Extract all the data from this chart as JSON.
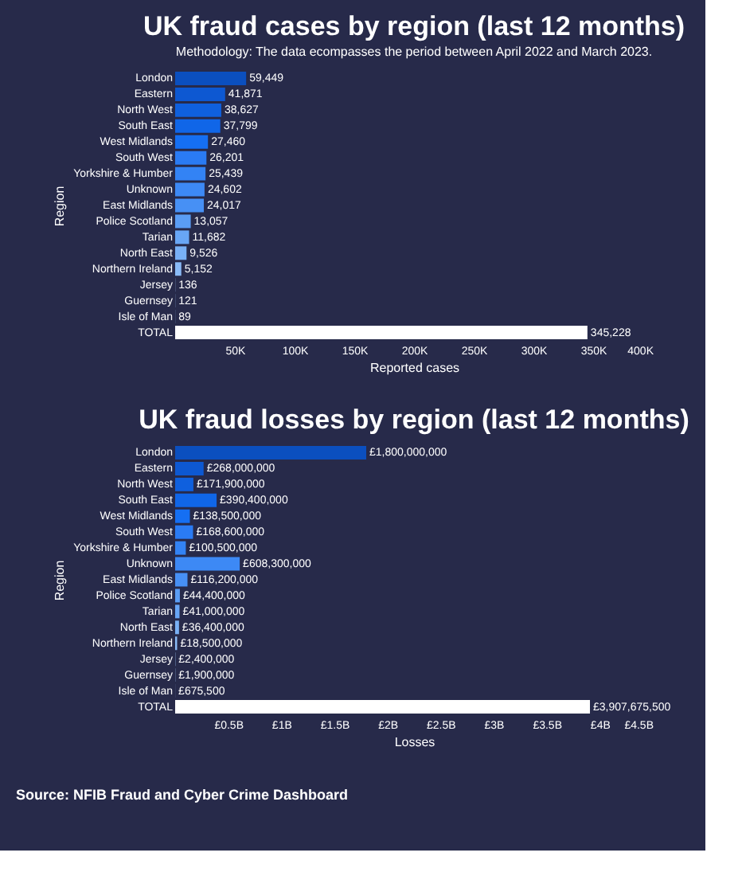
{
  "chart_data": [
    {
      "type": "bar",
      "orientation": "horizontal",
      "title": "UK fraud cases by region (last 12 months)",
      "subtitle": "Methodology: The data ecompasses the period between April 2022 and March 2023.",
      "xlabel": "Reported cases",
      "ylabel": "Region",
      "categories": [
        "London",
        "Eastern",
        "North West",
        "South East",
        "West Midlands",
        "South West",
        "Yorkshire & Humber",
        "Unknown",
        "East Midlands",
        "Police Scotland",
        "Tarian",
        "North East",
        "Northern Ireland",
        "Jersey",
        "Guernsey",
        "Isle of Man",
        "TOTAL"
      ],
      "values": [
        59449,
        41871,
        38627,
        37799,
        27460,
        26201,
        25439,
        24602,
        24017,
        13057,
        11682,
        9526,
        5152,
        136,
        121,
        89,
        345228
      ],
      "value_labels": [
        "59,449",
        "41,871",
        "38,627",
        "37,799",
        "27,460",
        "26,201",
        "25,439",
        "24,602",
        "24,017",
        "13,057",
        "11,682",
        "9,526",
        "5,152",
        "136",
        "121",
        "89",
        "345,228"
      ],
      "colors": [
        "#0b4fbf",
        "#0d58d2",
        "#0f60de",
        "#1066e8",
        "#156ff3",
        "#2a7bf4",
        "#3383f5",
        "#3d89f5",
        "#4790f5",
        "#5a9df5",
        "#68a6f6",
        "#78b0f6",
        "#8abbf7",
        "#a0c8f8",
        "#a0c8f8",
        "#a0c8f8",
        "#ffffff"
      ],
      "xlim": [
        0,
        400000
      ],
      "xticks": [
        {
          "value": 50000,
          "label": "50K"
        },
        {
          "value": 100000,
          "label": "100K"
        },
        {
          "value": 150000,
          "label": "150K"
        },
        {
          "value": 200000,
          "label": "200K"
        },
        {
          "value": 250000,
          "label": "250K"
        },
        {
          "value": 300000,
          "label": "300K"
        },
        {
          "value": 350000,
          "label": "350K"
        },
        {
          "value": 400000,
          "label": "400K"
        }
      ],
      "grid": false
    },
    {
      "type": "bar",
      "orientation": "horizontal",
      "title": "UK fraud losses by region (last 12 months)",
      "xlabel": "Losses",
      "ylabel": "Region",
      "categories": [
        "London",
        "Eastern",
        "North West",
        "South East",
        "West Midlands",
        "South West",
        "Yorkshire & Humber",
        "Unknown",
        "East Midlands",
        "Police Scotland",
        "Tarian",
        "North East",
        "Northern Ireland",
        "Jersey",
        "Guernsey",
        "Isle of Man",
        "TOTAL"
      ],
      "values": [
        1800000000,
        268000000,
        171900000,
        390400000,
        138500000,
        168600000,
        100500000,
        608300000,
        116200000,
        44400000,
        41000000,
        36400000,
        18500000,
        2400000,
        1900000,
        675500,
        3907675500
      ],
      "value_labels": [
        "£1,800,000,000",
        "£268,000,000",
        "£171,900,000",
        "£390,400,000",
        "£138,500,000",
        "£168,600,000",
        "£100,500,000",
        "£608,300,000",
        "£116,200,000",
        "£44,400,000",
        "£41,000,000",
        "£36,400,000",
        "£18,500,000",
        "£2,400,000",
        "£1,900,000",
        "£675,500",
        "£3,907,675,500"
      ],
      "colors": [
        "#0b4fbf",
        "#0d58d2",
        "#0f60de",
        "#1066e8",
        "#156ff3",
        "#2a7bf4",
        "#3383f5",
        "#3d89f5",
        "#4790f5",
        "#5a9df5",
        "#68a6f6",
        "#78b0f6",
        "#8abbf7",
        "#a0c8f8",
        "#a0c8f8",
        "#a0c8f8",
        "#ffffff"
      ],
      "xlim": [
        0,
        4500000000
      ],
      "xticks": [
        {
          "value": 500000000,
          "label": "£0.5B"
        },
        {
          "value": 1000000000,
          "label": "£1B"
        },
        {
          "value": 1500000000,
          "label": "£1.5B"
        },
        {
          "value": 2000000000,
          "label": "£2B"
        },
        {
          "value": 2500000000,
          "label": "£2.5B"
        },
        {
          "value": 3000000000,
          "label": "£3B"
        },
        {
          "value": 3500000000,
          "label": "£3.5B"
        },
        {
          "value": 4000000000,
          "label": "£4B"
        },
        {
          "value": 4500000000,
          "label": "£4.5B"
        }
      ],
      "grid": false,
      "annotations": [
        "Source: NFIB Fraud and Cyber Crime Dashboard"
      ]
    }
  ]
}
